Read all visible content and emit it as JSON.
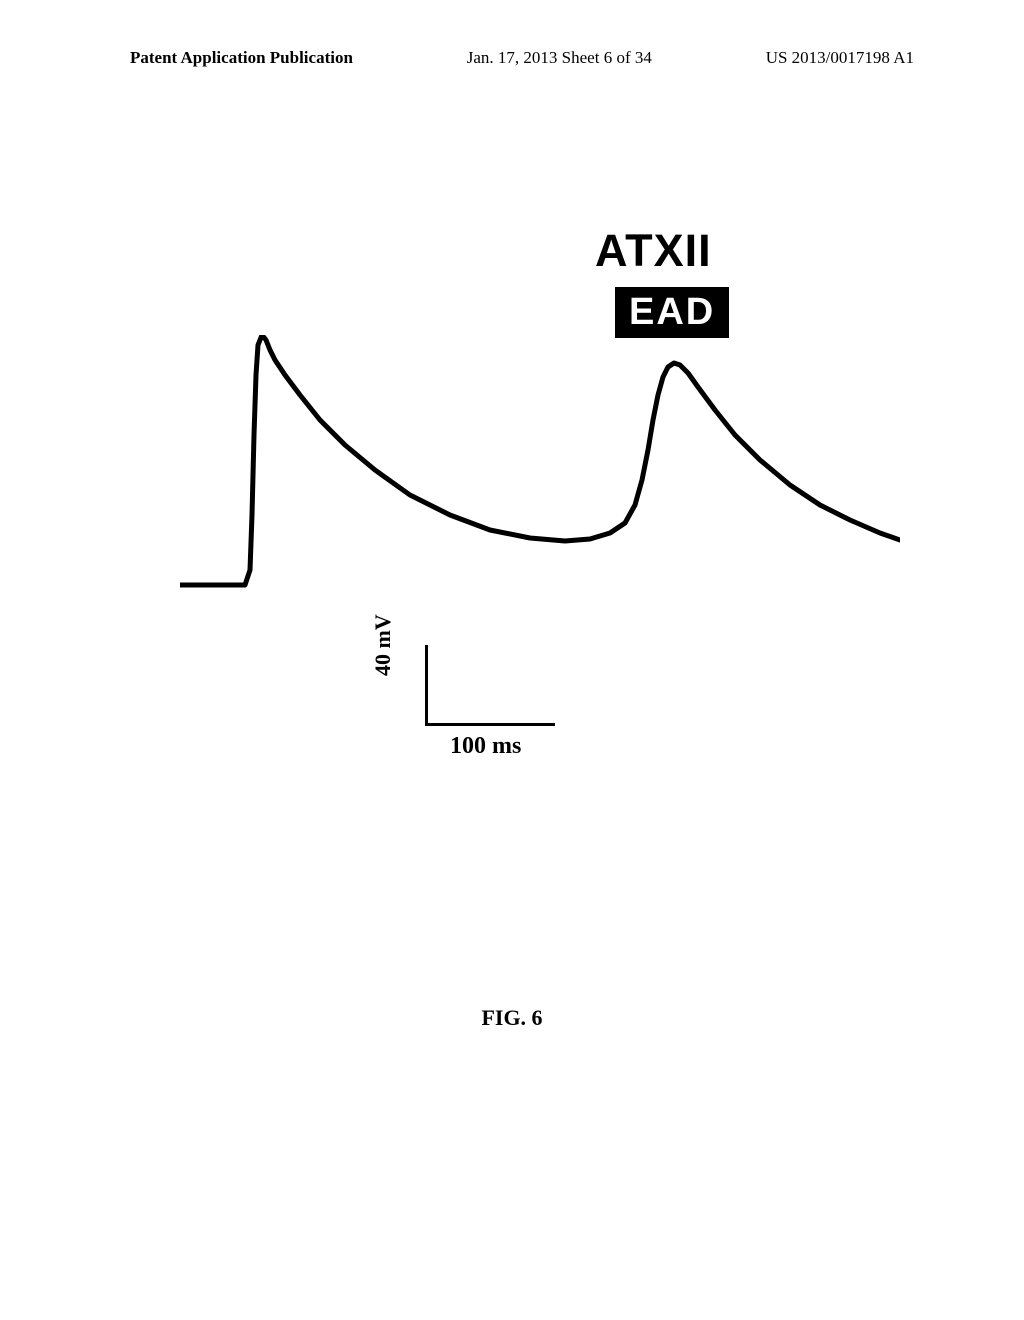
{
  "header": {
    "left": "Patent Application Publication",
    "center": "Jan. 17, 2013  Sheet 6 of 34",
    "right": "US 2013/0017198 A1"
  },
  "figure": {
    "title": "ATXII",
    "annotation": "EAD",
    "caption": "FIG. 6",
    "scale": {
      "y_label": "40 mV",
      "x_label": "100 ms"
    },
    "trace": {
      "type": "line",
      "stroke_color": "#000000",
      "stroke_width": 5,
      "points": [
        [
          0,
          250
        ],
        [
          15,
          250
        ],
        [
          30,
          250
        ],
        [
          45,
          250
        ],
        [
          60,
          250
        ],
        [
          65,
          250
        ],
        [
          70,
          235
        ],
        [
          72,
          180
        ],
        [
          74,
          100
        ],
        [
          76,
          40
        ],
        [
          78,
          10
        ],
        [
          82,
          0
        ],
        [
          86,
          5
        ],
        [
          90,
          15
        ],
        [
          95,
          25
        ],
        [
          105,
          40
        ],
        [
          120,
          60
        ],
        [
          140,
          85
        ],
        [
          165,
          110
        ],
        [
          195,
          135
        ],
        [
          230,
          160
        ],
        [
          270,
          180
        ],
        [
          310,
          195
        ],
        [
          350,
          203
        ],
        [
          385,
          206
        ],
        [
          410,
          204
        ],
        [
          430,
          198
        ],
        [
          445,
          188
        ],
        [
          455,
          170
        ],
        [
          462,
          145
        ],
        [
          468,
          115
        ],
        [
          473,
          85
        ],
        [
          478,
          60
        ],
        [
          483,
          42
        ],
        [
          488,
          32
        ],
        [
          494,
          28
        ],
        [
          500,
          30
        ],
        [
          508,
          38
        ],
        [
          518,
          52
        ],
        [
          535,
          75
        ],
        [
          555,
          100
        ],
        [
          580,
          125
        ],
        [
          610,
          150
        ],
        [
          640,
          170
        ],
        [
          670,
          185
        ],
        [
          700,
          198
        ],
        [
          720,
          205
        ]
      ]
    }
  }
}
